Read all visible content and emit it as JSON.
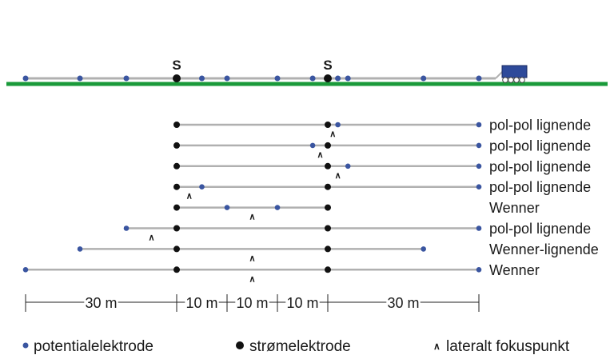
{
  "colors": {
    "ground": "#1a9a3a",
    "cable": "#b0b0b0",
    "potential_electrode": "#3a55a0",
    "current_electrode": "#111111",
    "cart": "#2e4a9a"
  },
  "units": "m",
  "survey_line": {
    "current_label": "S",
    "potential_electrodes_m": [
      0,
      10.8,
      20,
      35,
      40,
      50,
      57,
      62,
      64,
      79,
      90
    ],
    "current_electrodes_m": [
      30,
      60
    ]
  },
  "configurations": [
    {
      "label": "pol-pol lignende",
      "span_m": [
        30,
        90
      ],
      "current_m": [
        30,
        60
      ],
      "potential_m": [
        62,
        90
      ],
      "focus_m": 61
    },
    {
      "label": "pol-pol lignende",
      "span_m": [
        30,
        90
      ],
      "current_m": [
        30,
        60
      ],
      "potential_m": [
        57,
        90
      ],
      "focus_m": 58.5
    },
    {
      "label": "pol-pol lignende",
      "span_m": [
        30,
        90
      ],
      "current_m": [
        30,
        60
      ],
      "potential_m": [
        64,
        90
      ],
      "focus_m": 62
    },
    {
      "label": "pol-pol lignende",
      "span_m": [
        30,
        90
      ],
      "current_m": [
        30,
        60
      ],
      "potential_m": [
        35,
        90
      ],
      "focus_m": 32.5
    },
    {
      "label": "Wenner",
      "span_m": [
        30,
        60
      ],
      "current_m": [
        30,
        60
      ],
      "potential_m": [
        40,
        50
      ],
      "focus_m": 45
    },
    {
      "label": "pol-pol lignende",
      "span_m": [
        20,
        90
      ],
      "current_m": [
        30,
        60
      ],
      "potential_m": [
        20,
        90
      ],
      "focus_m": 25
    },
    {
      "label": "Wenner-lignende",
      "span_m": [
        10.8,
        79
      ],
      "current_m": [
        30,
        60
      ],
      "potential_m": [
        10.8,
        79
      ],
      "focus_m": 45
    },
    {
      "label": "Wenner",
      "span_m": [
        0,
        90
      ],
      "current_m": [
        30,
        60
      ],
      "potential_m": [
        0,
        90
      ],
      "focus_m": 45
    }
  ],
  "scale": {
    "segments": [
      {
        "from_m": 0,
        "to_m": 30,
        "label": "30 m"
      },
      {
        "from_m": 30,
        "to_m": 40,
        "label": "10 m"
      },
      {
        "from_m": 40,
        "to_m": 50,
        "label": "10 m"
      },
      {
        "from_m": 50,
        "to_m": 60,
        "label": "10 m"
      },
      {
        "from_m": 60,
        "to_m": 90,
        "label": "30 m"
      }
    ]
  },
  "legend": {
    "potential": "potentialelektrode",
    "current": "strømelektrode",
    "focus_symbol": "∧",
    "focus": "lateralt fokuspunkt"
  }
}
